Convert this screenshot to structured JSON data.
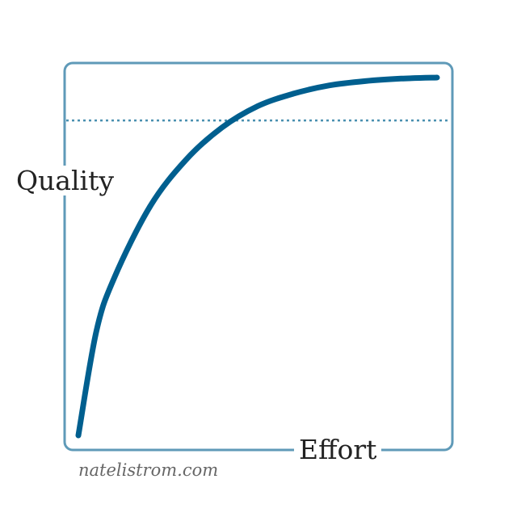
{
  "chart_data": {
    "type": "line",
    "title": "",
    "xlabel": "Effort",
    "ylabel": "Quality",
    "grid": false,
    "legend": "none",
    "xlim": [
      0,
      1
    ],
    "ylim": [
      0,
      1
    ],
    "series": [
      {
        "x": [
          0,
          0.05,
          0.1,
          0.2,
          0.3,
          0.4,
          0.5,
          0.6,
          0.7,
          0.8,
          0.9,
          1
        ],
        "y": [
          0,
          0.29,
          0.44,
          0.64,
          0.77,
          0.86,
          0.92,
          0.955,
          0.978,
          0.99,
          0.997,
          1
        ],
        "color": "#005f8f"
      }
    ],
    "reference_line": {
      "type": "horizontal",
      "y": 0.88,
      "style": "dotted",
      "color": "#4a90b0"
    }
  },
  "frame_color": "#5f9ab8",
  "watermark": "natelistrom.com"
}
